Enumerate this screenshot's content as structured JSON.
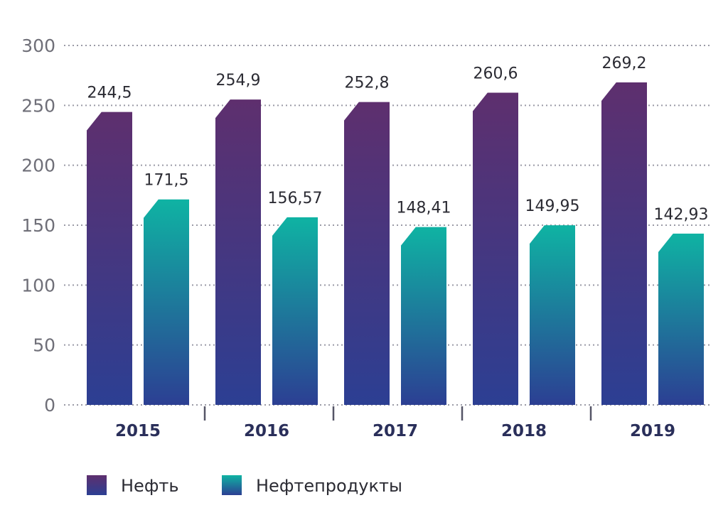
{
  "chart_data": {
    "type": "bar",
    "categories": [
      "2015",
      "2016",
      "2017",
      "2018",
      "2019"
    ],
    "series": [
      {
        "name": "Нефть",
        "values": [
          244.5,
          254.9,
          252.8,
          260.6,
          269.2
        ]
      },
      {
        "name": "Нефтепродукты",
        "values": [
          171.5,
          156.57,
          148.41,
          149.95,
          142.93
        ]
      }
    ],
    "value_labels": [
      [
        "244,5",
        "254,9",
        "252,8",
        "260,6",
        "269,2"
      ],
      [
        "171,5",
        "156,57",
        "148,41",
        "149,95",
        "142,93"
      ]
    ],
    "yticks": [
      "0",
      "50",
      "100",
      "150",
      "200",
      "250",
      "300"
    ],
    "ylim": [
      0,
      300
    ],
    "grid": true,
    "legend_position": "bottom-left",
    "colors": {
      "oil_top": "#5e2f6e",
      "oil_bottom": "#2c3f93",
      "products_top": "#0fb3a3",
      "products_bottom": "#2c3f93",
      "grid": "#9a9aa6",
      "axis": "#555566"
    }
  }
}
